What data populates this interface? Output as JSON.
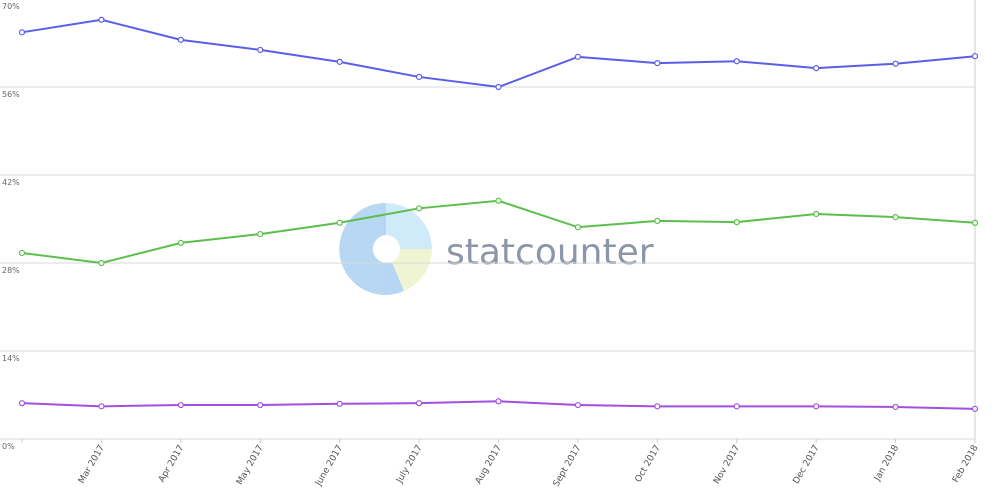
{
  "chart_data": {
    "type": "line",
    "watermark": "statcounter",
    "categories": [
      null,
      "Mar 2017",
      "Apr 2017",
      "May 2017",
      "June 2017",
      "July 2017",
      "Aug 2017",
      "Sept 2017",
      "Oct 2017",
      "Nov 2017",
      "Dec 2017",
      "Jan 2018",
      "Feb 2018"
    ],
    "series": [
      {
        "color": "#5b5ee8",
        "values": [
          64.7,
          66.7,
          63.5,
          61.9,
          60.0,
          57.6,
          56.0,
          60.8,
          59.8,
          60.1,
          59.0,
          59.7,
          60.9
        ]
      },
      {
        "color": "#5cbf4c",
        "values": [
          29.6,
          28.0,
          31.2,
          32.6,
          34.4,
          36.7,
          37.9,
          33.7,
          34.7,
          34.5,
          35.8,
          35.3,
          34.4
        ]
      },
      {
        "color": "#a34fe0",
        "values": [
          5.7,
          5.2,
          5.4,
          5.4,
          5.6,
          5.7,
          6.0,
          5.4,
          5.2,
          5.2,
          5.2,
          5.1,
          4.8
        ]
      }
    ],
    "ylim": [
      0,
      70
    ],
    "yticks": [
      {
        "value": 0,
        "label": "0%"
      },
      {
        "value": 14,
        "label": "14%"
      },
      {
        "value": 28,
        "label": "28%"
      },
      {
        "value": 42,
        "label": "42%"
      },
      {
        "value": 56,
        "label": "56%"
      },
      {
        "value": 70,
        "label": "70%"
      }
    ],
    "grid": true
  }
}
